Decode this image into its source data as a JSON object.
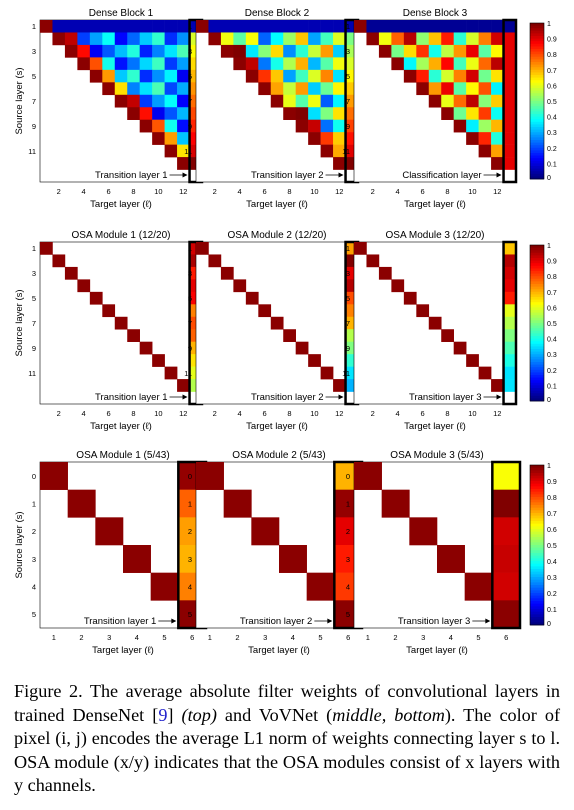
{
  "figure": {
    "rows": [
      {
        "row_id": "densenet",
        "ylabel": "Source layer (s)",
        "xlabel": "Target layer (ℓ)",
        "xticks": [
          "2",
          "4",
          "6",
          "8",
          "10",
          "12"
        ],
        "yticks": [
          "1",
          "3",
          "5",
          "7",
          "9",
          "11"
        ],
        "panels": [
          {
            "title": "Dense Block 1",
            "annotation": "Transition layer 1"
          },
          {
            "title": "Dense Block 2",
            "annotation": "Transition layer 2"
          },
          {
            "title": "Dense Block 3",
            "annotation": "Classification layer"
          }
        ],
        "colorbar_ticks": [
          "1",
          "0.9",
          "0.8",
          "0.7",
          "0.6",
          "0.5",
          "0.4",
          "0.3",
          "0.2",
          "0.1",
          "0"
        ]
      },
      {
        "row_id": "vovnet-12-20",
        "ylabel": "Source layer (s)",
        "xlabel": "Target layer (ℓ)",
        "xticks": [
          "2",
          "4",
          "6",
          "8",
          "10",
          "12"
        ],
        "yticks": [
          "1",
          "3",
          "5",
          "7",
          "9",
          "11"
        ],
        "panels": [
          {
            "title": "OSA Module 1 (12/20)",
            "annotation": "Transition layer 1"
          },
          {
            "title": "OSA Module 2 (12/20)",
            "annotation": "Transition layer 2"
          },
          {
            "title": "OSA Module 3 (12/20)",
            "annotation": "Transition layer 3"
          }
        ],
        "colorbar_ticks": [
          "1",
          "0.9",
          "0.8",
          "0.7",
          "0.6",
          "0.5",
          "0.4",
          "0.3",
          "0.2",
          "0.1",
          "0"
        ]
      },
      {
        "row_id": "vovnet-5-43",
        "ylabel": "Source layer (s)",
        "xlabel": "Target layer (ℓ)",
        "xticks": [
          "1",
          "2",
          "3",
          "4",
          "5",
          "6"
        ],
        "yticks": [
          "0",
          "1",
          "2",
          "3",
          "4",
          "5"
        ],
        "panels": [
          {
            "title": "OSA Module 1 (5/43)",
            "annotation": "Transition layer 1"
          },
          {
            "title": "OSA Module 2 (5/43)",
            "annotation": "Transition layer 2"
          },
          {
            "title": "OSA Module 3 (5/43)",
            "annotation": "Transition layer 3"
          }
        ],
        "colorbar_ticks": [
          "1",
          "0.9",
          "0.8",
          "0.7",
          "0.6",
          "0.5",
          "0.4",
          "0.3",
          "0.2",
          "0.1",
          "0"
        ]
      }
    ]
  },
  "caption": {
    "figure_label": "Figure 2.",
    "text_1": "The average absolute filter weights of convolutional layers in trained DenseNet [",
    "ref": "9",
    "text_2": "] ",
    "top": "(top)",
    "text_3": " and VoVNet (",
    "middle_bottom": "middle, bottom",
    "text_4": "). The color of pixel (i, j) encodes the average L1 norm of weights connecting layer s to l. OSA module (x/y) indicates that the OSA modules consist of x layers with y channels."
  }
}
